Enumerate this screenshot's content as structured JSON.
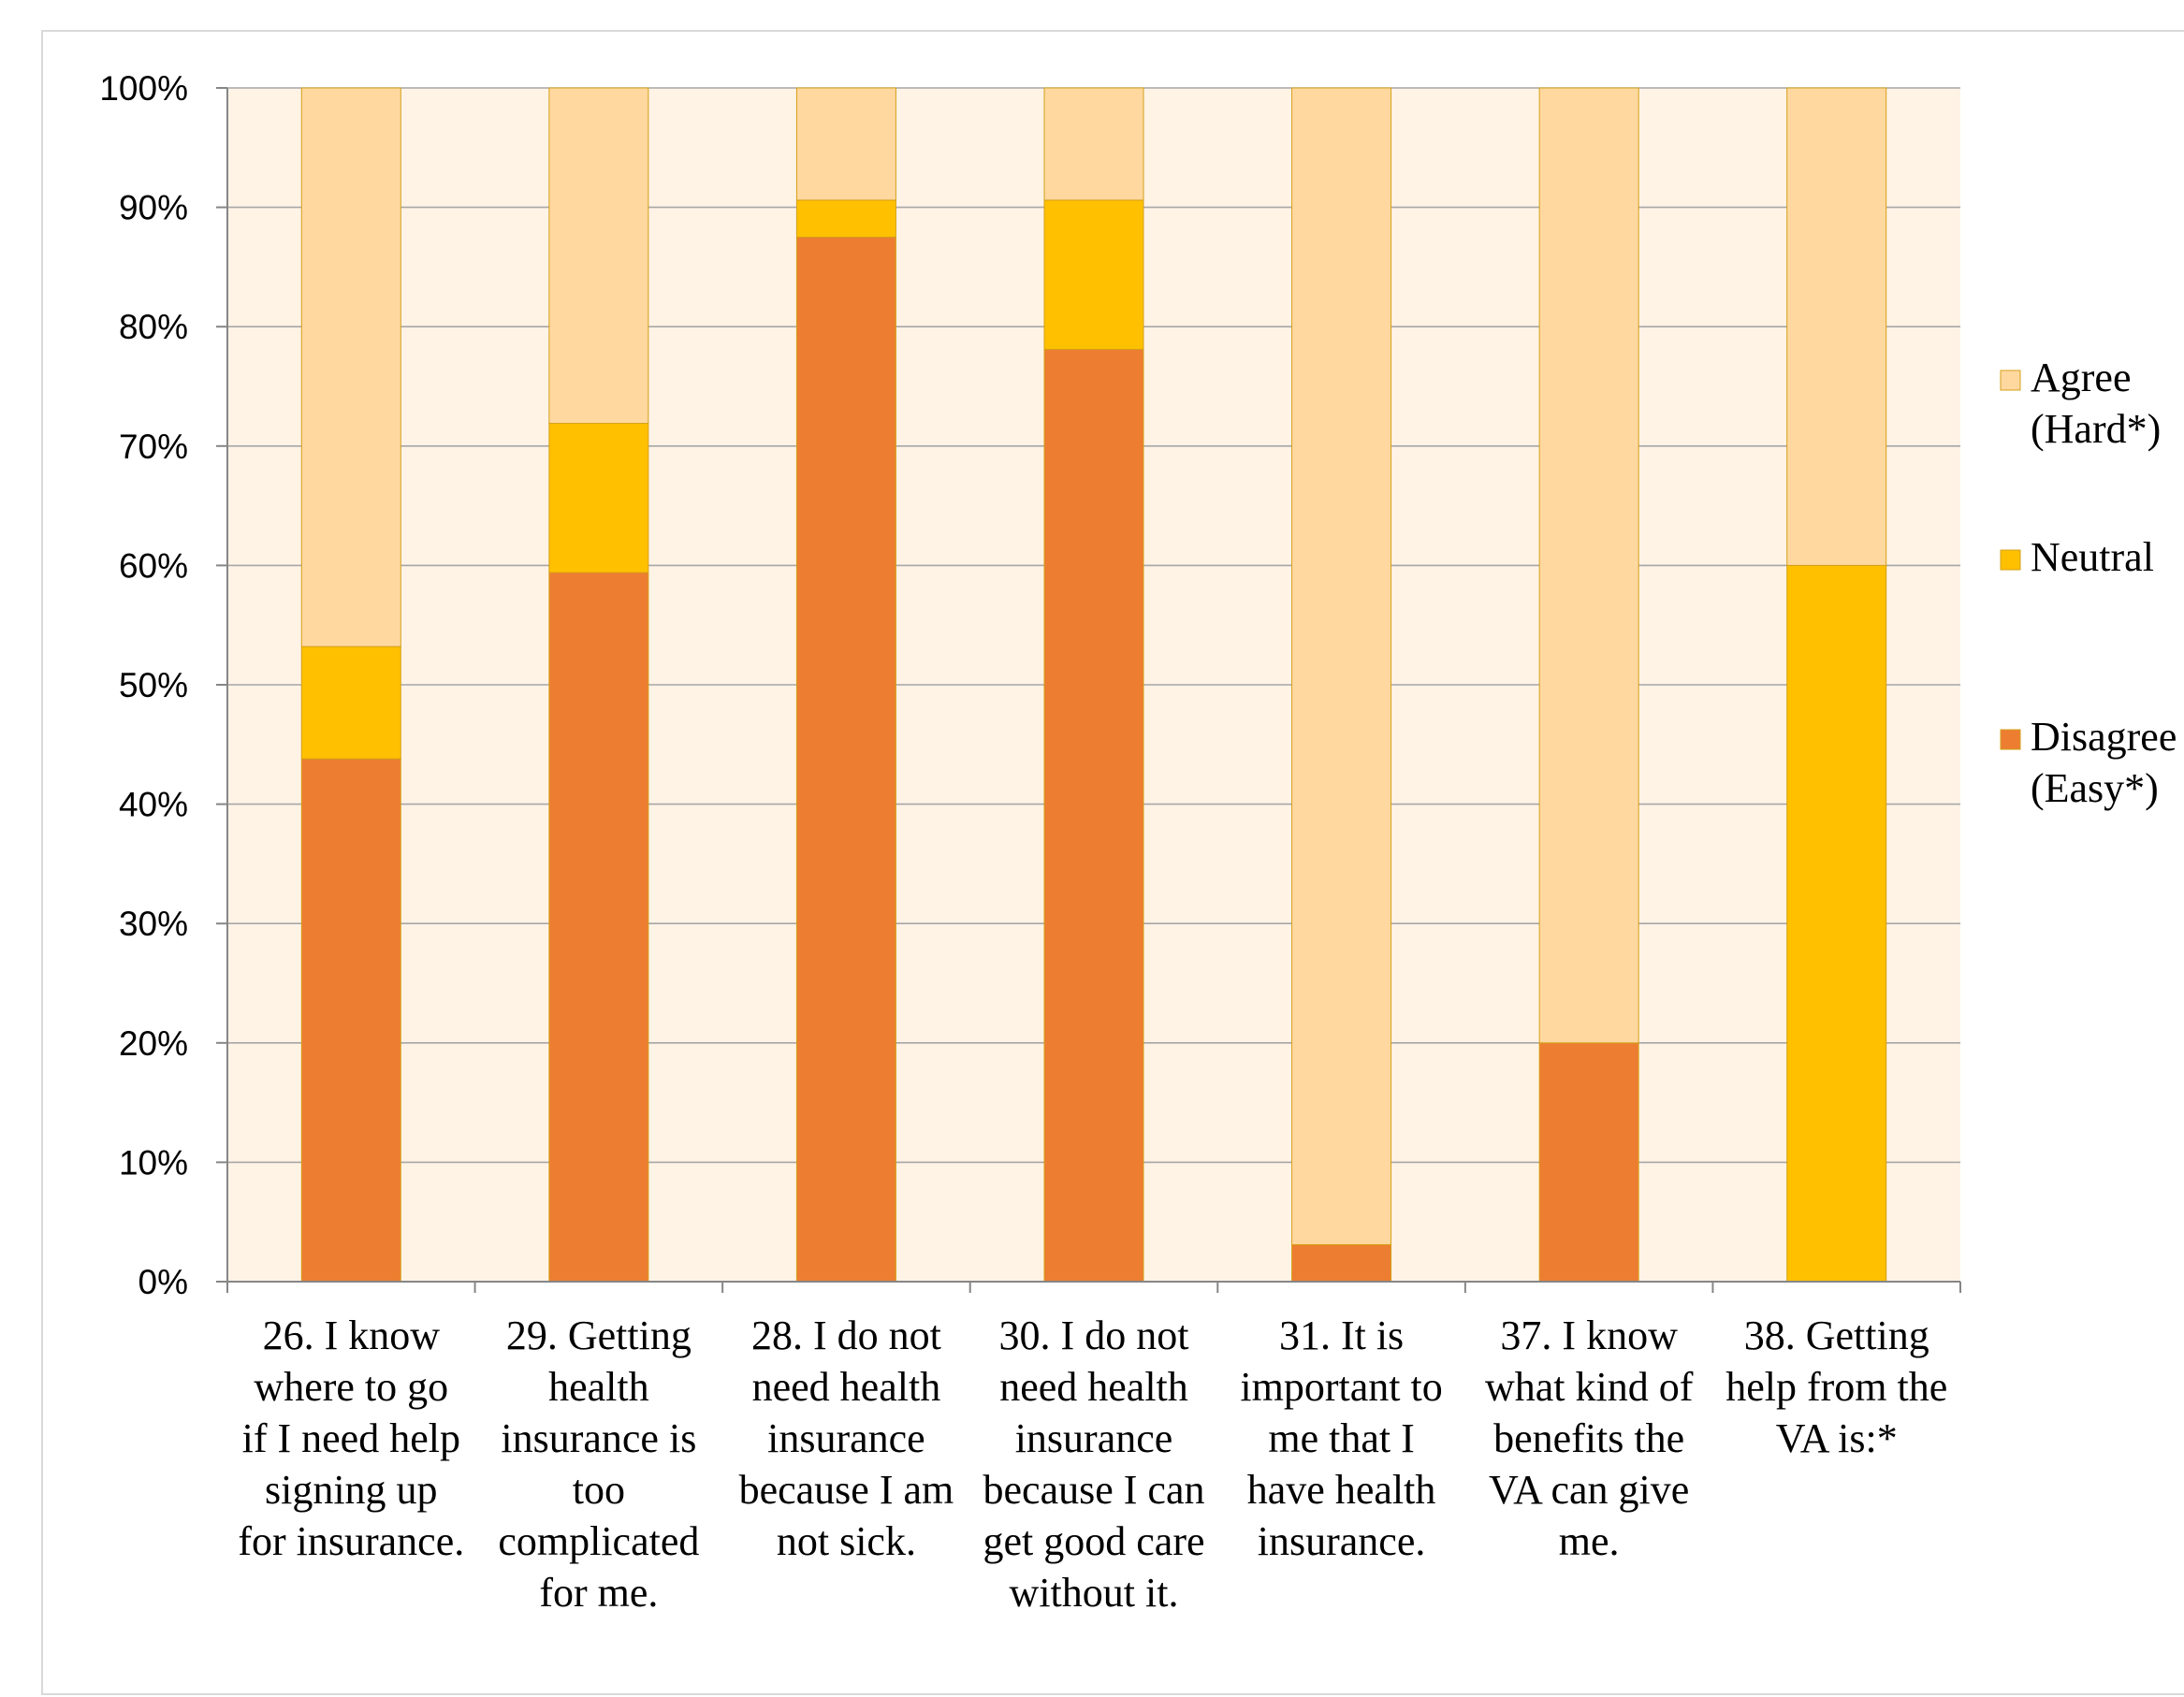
{
  "chart_data": {
    "type": "bar",
    "stacked": true,
    "percent_stacked": true,
    "ylim": [
      0,
      100
    ],
    "yticks": [
      "0%",
      "10%",
      "20%",
      "30%",
      "40%",
      "50%",
      "60%",
      "70%",
      "80%",
      "90%",
      "100%"
    ],
    "grid": true,
    "legend_position": "right",
    "categories": [
      [
        "26. I know",
        "where to go",
        "if I need help",
        "signing up",
        "for insurance."
      ],
      [
        "29. Getting",
        "health",
        "insurance is",
        "too",
        "complicated",
        "for me."
      ],
      [
        "28. I do not",
        "need health",
        "insurance",
        "because I am",
        "not sick."
      ],
      [
        "30. I do not",
        "need health",
        "insurance",
        "because I can",
        "get good care",
        "without it."
      ],
      [
        "31. It is",
        "important to",
        "me that I",
        "have health",
        "insurance."
      ],
      [
        "37. I know",
        "what kind of",
        "benefits the",
        "VA can give",
        "me."
      ],
      [
        "38. Getting",
        "help from the",
        "VA is:*"
      ]
    ],
    "series": [
      {
        "name": [
          "Disagree",
          "(Easy*)"
        ],
        "color": "#ED7D31",
        "values": [
          43.8,
          59.4,
          87.5,
          78.1,
          3.1,
          20.0,
          0.0
        ]
      },
      {
        "name": [
          "Neutral"
        ],
        "color": "#FFC000",
        "values": [
          9.4,
          12.5,
          3.1,
          12.5,
          0.0,
          0.0,
          60.0
        ]
      },
      {
        "name": [
          "Agree",
          "(Hard*)"
        ],
        "color": "#FFD8A0",
        "values": [
          46.8,
          28.1,
          9.4,
          9.4,
          96.9,
          80.0,
          40.0
        ]
      }
    ],
    "colors": {
      "plot_background": "#FFF3E6",
      "gridline": "#a6a6a6",
      "bar_border": "#d4a017"
    }
  }
}
